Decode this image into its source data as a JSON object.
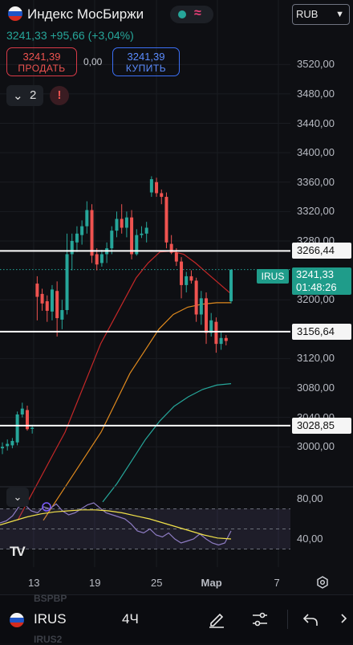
{
  "header": {
    "title": "Индекс МосБиржи",
    "price": "3241,33",
    "change": "+95,66 (+3,04%)",
    "status_icon": "wave-icon",
    "currency": "RUB"
  },
  "trade": {
    "sell_price": "3241,39",
    "sell_label": "ПРОДАТЬ",
    "spread": "0,00",
    "buy_price": "3241,39",
    "buy_label": "КУПИТЬ"
  },
  "indicators": {
    "count": "2",
    "alert_icon": "!"
  },
  "price_axis": [
    "3520,00",
    "3480,00",
    "3440,00",
    "3400,00",
    "3360,00",
    "3320,00",
    "3280,00",
    "3200,00",
    "3120,00",
    "3080,00",
    "3040,00",
    "3000,00"
  ],
  "horizontal_lines": [
    "3266,44",
    "3156,64",
    "3028,85"
  ],
  "current": {
    "symbol": "IRUS",
    "price": "3241,33",
    "countdown": "01:48:26"
  },
  "rsi_axis": [
    "80,00",
    "40,00"
  ],
  "date_axis": [
    "13",
    "19",
    "25",
    "Мар",
    "7"
  ],
  "bottom_bar": {
    "symbol": "IRUS",
    "interval": "4Ч",
    "ghost_top": "BSPBP",
    "ghost_bottom": "IRUS2"
  },
  "colors": {
    "up": "#26a69a",
    "down": "#ef5350",
    "ma_fast": "#c62828",
    "ma_mid": "#e08a1e",
    "ma_slow": "#26a69a",
    "rsi": "#8e7cc3",
    "rsi_ma": "#f2e24a"
  },
  "chart_data": {
    "type": "candlestick",
    "candles": [
      {
        "o": 2998,
        "h": 3006,
        "l": 2990,
        "c": 3000
      },
      {
        "o": 3001,
        "h": 3010,
        "l": 2995,
        "c": 3004
      },
      {
        "o": 3002,
        "h": 3012,
        "l": 2998,
        "c": 3008
      },
      {
        "o": 3006,
        "h": 3048,
        "l": 3002,
        "c": 3044
      },
      {
        "o": 3044,
        "h": 3060,
        "l": 3040,
        "c": 3052
      },
      {
        "o": 3050,
        "h": 3056,
        "l": 3022,
        "c": 3024
      },
      {
        "o": 3026,
        "h": 3030,
        "l": 3018,
        "c": 3026
      },
      {
        "o": 3222,
        "h": 3232,
        "l": 3172,
        "c": 3204
      },
      {
        "o": 3208,
        "h": 3215,
        "l": 3185,
        "c": 3195
      },
      {
        "o": 3198,
        "h": 3206,
        "l": 3170,
        "c": 3185
      },
      {
        "o": 3184,
        "h": 3220,
        "l": 3172,
        "c": 3214
      },
      {
        "o": 3212,
        "h": 3225,
        "l": 3150,
        "c": 3175
      },
      {
        "o": 3173,
        "h": 3200,
        "l": 3160,
        "c": 3186
      },
      {
        "o": 3186,
        "h": 3290,
        "l": 3180,
        "c": 3262
      },
      {
        "o": 3262,
        "h": 3290,
        "l": 3240,
        "c": 3280
      },
      {
        "o": 3278,
        "h": 3300,
        "l": 3265,
        "c": 3290
      },
      {
        "o": 3288,
        "h": 3308,
        "l": 3275,
        "c": 3300
      },
      {
        "o": 3300,
        "h": 3334,
        "l": 3290,
        "c": 3322
      },
      {
        "o": 3322,
        "h": 3330,
        "l": 3250,
        "c": 3260
      },
      {
        "o": 3262,
        "h": 3270,
        "l": 3240,
        "c": 3248
      },
      {
        "o": 3250,
        "h": 3268,
        "l": 3245,
        "c": 3262
      },
      {
        "o": 3262,
        "h": 3278,
        "l": 3250,
        "c": 3270
      },
      {
        "o": 3270,
        "h": 3300,
        "l": 3262,
        "c": 3294
      },
      {
        "o": 3294,
        "h": 3320,
        "l": 3285,
        "c": 3310
      },
      {
        "o": 3310,
        "h": 3330,
        "l": 3290,
        "c": 3298
      },
      {
        "o": 3298,
        "h": 3320,
        "l": 3285,
        "c": 3312
      },
      {
        "o": 3312,
        "h": 3322,
        "l": 3255,
        "c": 3262
      },
      {
        "o": 3262,
        "h": 3296,
        "l": 3260,
        "c": 3288
      },
      {
        "o": 3288,
        "h": 3300,
        "l": 3284,
        "c": 3290
      },
      {
        "o": 3290,
        "h": 3306,
        "l": 3278,
        "c": 3298
      },
      {
        "o": 3346,
        "h": 3368,
        "l": 3340,
        "c": 3364
      },
      {
        "o": 3360,
        "h": 3366,
        "l": 3340,
        "c": 3345
      },
      {
        "o": 3345,
        "h": 3350,
        "l": 3330,
        "c": 3340
      },
      {
        "o": 3340,
        "h": 3346,
        "l": 3270,
        "c": 3278
      },
      {
        "o": 3276,
        "h": 3288,
        "l": 3262,
        "c": 3264
      },
      {
        "o": 3264,
        "h": 3270,
        "l": 3246,
        "c": 3252
      },
      {
        "o": 3252,
        "h": 3258,
        "l": 3202,
        "c": 3220
      },
      {
        "o": 3220,
        "h": 3238,
        "l": 3210,
        "c": 3232
      },
      {
        "o": 3232,
        "h": 3240,
        "l": 3222,
        "c": 3226
      },
      {
        "o": 3226,
        "h": 3230,
        "l": 3170,
        "c": 3180
      },
      {
        "o": 3180,
        "h": 3212,
        "l": 3166,
        "c": 3202
      },
      {
        "o": 3202,
        "h": 3210,
        "l": 3140,
        "c": 3155
      },
      {
        "o": 3155,
        "h": 3182,
        "l": 3150,
        "c": 3172
      },
      {
        "o": 3170,
        "h": 3176,
        "l": 3128,
        "c": 3140
      },
      {
        "o": 3140,
        "h": 3156,
        "l": 3132,
        "c": 3148
      },
      {
        "o": 3148,
        "h": 3152,
        "l": 3138,
        "c": 3144
      },
      {
        "o": 3198,
        "h": 3241,
        "l": 3195,
        "c": 3241
      }
    ],
    "ma_fast": [
      2900,
      2930,
      2960,
      2990,
      3020,
      3060,
      3100,
      3140,
      3170,
      3200,
      3230,
      3250,
      3265,
      3266,
      3262,
      3250,
      3236,
      3222,
      3208
    ],
    "ma_mid": [
      2900,
      2930,
      2960,
      2990,
      3020,
      3060,
      3100,
      3130,
      3160,
      3180,
      3190,
      3194,
      3196,
      3196
    ],
    "ma_slow": [
      2925,
      2950,
      2980,
      3010,
      3035,
      3055,
      3068,
      3078,
      3084,
      3086
    ],
    "rsi_values": [
      56,
      58,
      63,
      72,
      74,
      68,
      66,
      72,
      70,
      75,
      68,
      64,
      66,
      70,
      74,
      76,
      71,
      66,
      64,
      62,
      60,
      55,
      48,
      46,
      50,
      44,
      42,
      46,
      40,
      36,
      38,
      40,
      45,
      40,
      36,
      34,
      36,
      48
    ],
    "rsi_ma": [
      54,
      58,
      62,
      65,
      67,
      68,
      69,
      69,
      68,
      66,
      63,
      60,
      56,
      52,
      48,
      44,
      41,
      40
    ],
    "rsi_range": [
      20,
      100
    ],
    "price_range": [
      2985,
      3540
    ]
  }
}
